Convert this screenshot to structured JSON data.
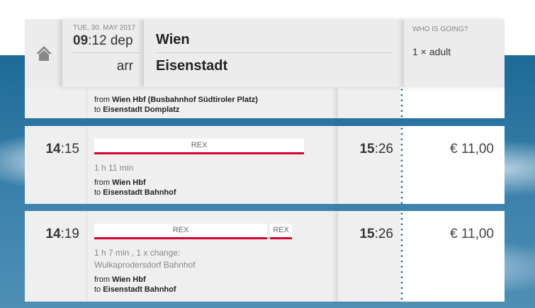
{
  "header": {
    "date": "TUE, 30. MAY 2017",
    "dep_hour": "09",
    "dep_min": ":12 dep",
    "arr_label": "arr",
    "from": "Wien",
    "to": "Eisenstadt",
    "who_label": "WHO IS GOING?",
    "who_value": "1 × adult"
  },
  "partial": {
    "from_prefix": "from",
    "from": "Wien Hbf (Busbahnhof Südtiroler Platz)",
    "to_prefix": "to",
    "to": "Eisenstadt Domplatz"
  },
  "connections": [
    {
      "dep_hour": "14",
      "dep_min": ":15",
      "trains": [
        "REX"
      ],
      "duration": "1 h 11 min",
      "change": "",
      "from_prefix": "from",
      "from": "Wien Hbf",
      "to_prefix": "to",
      "to": "Eisenstadt Bahnhof",
      "arr_hour": "15",
      "arr_min": ":26",
      "price": "€ 11,00"
    },
    {
      "dep_hour": "14",
      "dep_min": ":19",
      "trains": [
        "REX",
        "REX"
      ],
      "duration": "1 h 7 min , 1 x change:",
      "change": "Wulkaprodersdorf Bahnhof",
      "from_prefix": "from",
      "from": "Wien Hbf",
      "to_prefix": "to",
      "to": "Eisenstadt Bahnhof",
      "arr_hour": "15",
      "arr_min": ":26",
      "price": "€ 11,00"
    }
  ],
  "colors": {
    "train_line": "#d5002c",
    "dots": "#2a6f9b"
  }
}
